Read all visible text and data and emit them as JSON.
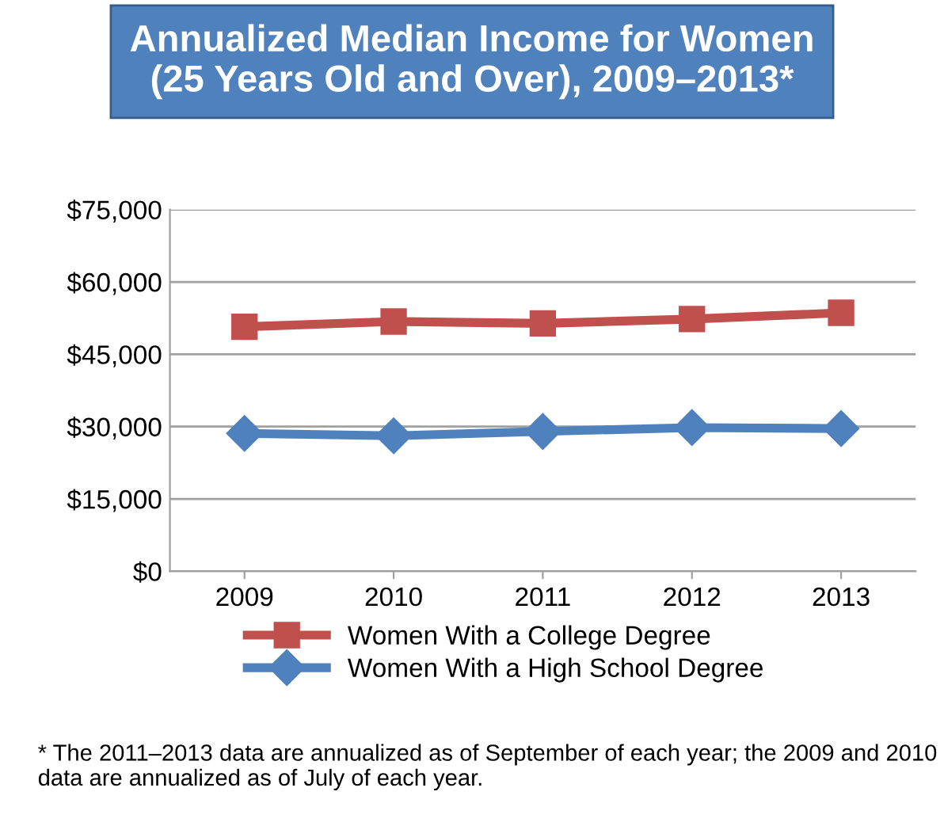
{
  "chart_data": {
    "type": "line",
    "title": "Annualized Median Income for Women\n(25 Years Old and Over), 2009–2013*",
    "categories": [
      "2009",
      "2010",
      "2011",
      "2012",
      "2013"
    ],
    "series": [
      {
        "name": "Women With a College Degree",
        "color": "#c0504d",
        "marker": "square",
        "values": [
          50700,
          51800,
          51400,
          52300,
          53600
        ]
      },
      {
        "name": "Women With a High School Degree",
        "color": "#4f81bd",
        "marker": "diamond",
        "values": [
          28600,
          28100,
          29000,
          29800,
          29600
        ]
      }
    ],
    "ylim": [
      0,
      75000
    ],
    "yticks": [
      {
        "value": 0,
        "label": "$0"
      },
      {
        "value": 15000,
        "label": "$15,000"
      },
      {
        "value": 30000,
        "label": "$30,000"
      },
      {
        "value": 45000,
        "label": "$45,000"
      },
      {
        "value": 60000,
        "label": "$60,000"
      },
      {
        "value": 75000,
        "label": "$75,000"
      }
    ],
    "grid": "y",
    "legend": "bottom",
    "line_style": "solid",
    "annotations": [
      "* The 2011–2013 data are annualized as of September of each year; the 2009 and 2010 data are annualized as of July of each year."
    ]
  }
}
